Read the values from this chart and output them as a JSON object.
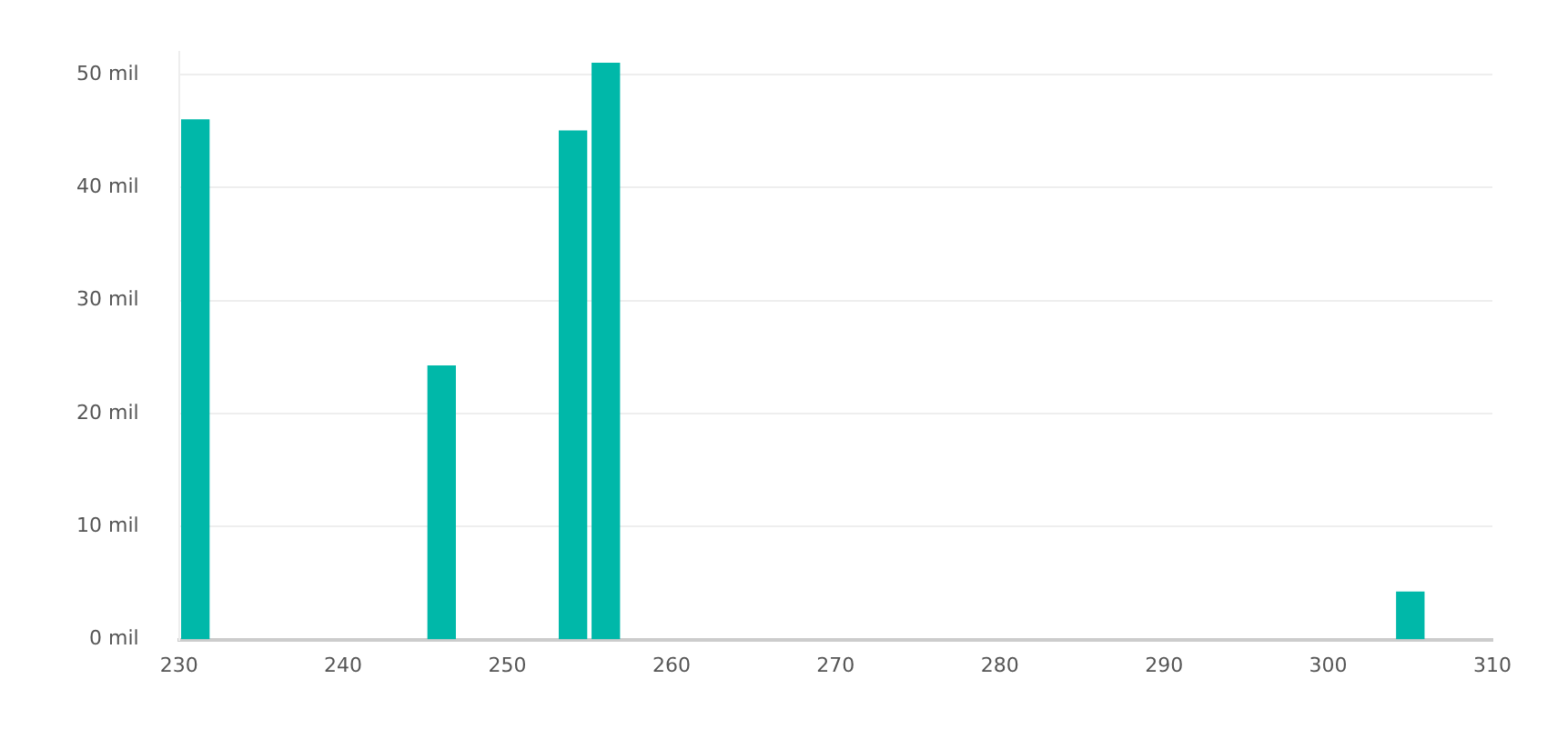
{
  "chart_data": {
    "type": "bar",
    "x": [
      231,
      246,
      254,
      256,
      305
    ],
    "values": [
      46,
      24.2,
      45,
      51,
      4.2
    ],
    "color": "#00b8a9",
    "xlim": [
      230,
      310
    ],
    "xticks": [
      230,
      240,
      250,
      260,
      270,
      280,
      290,
      300,
      310
    ],
    "ylim": [
      0,
      52
    ],
    "yticks": [
      {
        "value": 0,
        "label": "0 mil"
      },
      {
        "value": 10,
        "label": "10 mil"
      },
      {
        "value": 20,
        "label": "20 mil"
      },
      {
        "value": 30,
        "label": "30 mil"
      },
      {
        "value": 40,
        "label": "40 mil"
      },
      {
        "value": 50,
        "label": "50 mil"
      }
    ],
    "grid": "y",
    "legend": false
  }
}
